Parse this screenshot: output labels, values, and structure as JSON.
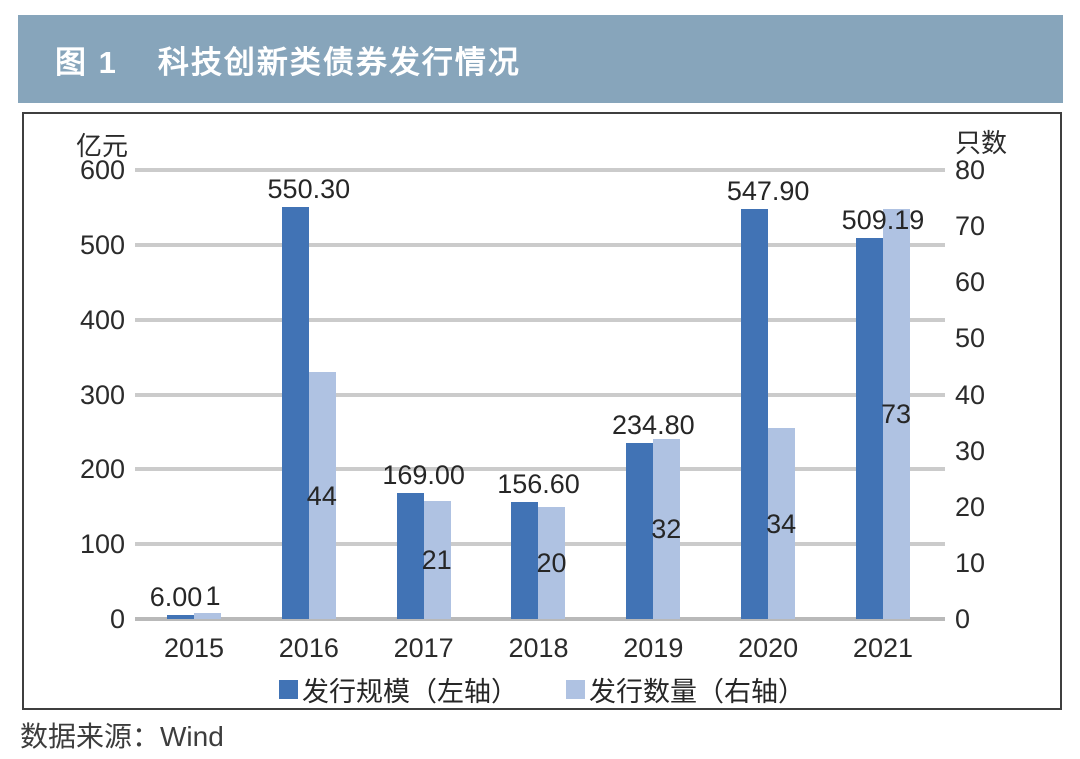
{
  "page": {
    "figure_label": "图 1",
    "title": "科技创新类债券发行情况",
    "source": "数据来源：Wind"
  },
  "colors": {
    "title_bar_bg": "#87A5BB",
    "title_text": "#FFFFFF",
    "panel_border": "#3F3F3F",
    "bar_primary": "#4173B5",
    "bar_secondary": "#AFC2E2",
    "gridline": "#CBCBCB",
    "zero_line": "#B9B9B9",
    "label_text": "#262626"
  },
  "chart_data": {
    "type": "bar",
    "title": "科技创新类债券发行情况",
    "categories": [
      "2015",
      "2016",
      "2017",
      "2018",
      "2019",
      "2020",
      "2021"
    ],
    "series": [
      {
        "name": "发行规模（左轴）",
        "axis": "left",
        "color": "#4173B5",
        "values": [
          6.0,
          550.3,
          169.0,
          156.6,
          234.8,
          547.9,
          509.19
        ],
        "labels": [
          "6.00",
          "550.30",
          "169.00",
          "156.60",
          "234.80",
          "547.90",
          "509.19"
        ]
      },
      {
        "name": "发行数量（右轴）",
        "axis": "right",
        "color": "#AFC2E2",
        "values": [
          1,
          44,
          21,
          20,
          32,
          34,
          73
        ],
        "labels": [
          "1",
          "44",
          "21",
          "20",
          "32",
          "34",
          "73"
        ]
      }
    ],
    "left_axis": {
      "unit": "亿元",
      "min": 0,
      "max": 600,
      "tick_step": 100,
      "ticks": [
        600,
        500,
        400,
        300,
        200,
        100,
        0
      ]
    },
    "right_axis": {
      "unit": "只数",
      "min": 0,
      "max": 80,
      "tick_step": 10,
      "ticks": [
        80,
        70,
        60,
        50,
        40,
        30,
        20,
        10,
        0
      ]
    },
    "grid": true,
    "legend_position": "bottom"
  }
}
